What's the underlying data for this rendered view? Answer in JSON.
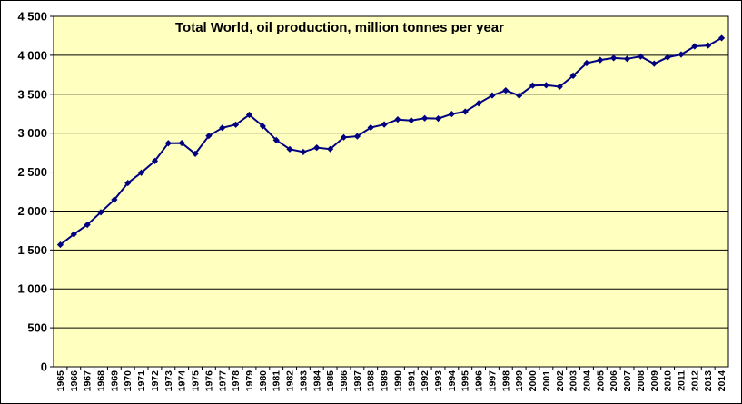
{
  "chart_data": {
    "type": "line",
    "title": "Total World, oil production, million tonnes per year",
    "xlabel": "",
    "ylabel": "",
    "ylim": [
      0,
      4500
    ],
    "yticks": [
      0,
      500,
      1000,
      1500,
      2000,
      2500,
      3000,
      3500,
      4000,
      4500
    ],
    "ytick_labels": [
      "0",
      "500",
      "1 000",
      "1 500",
      "2 000",
      "2 500",
      "3 000",
      "3 500",
      "4 000",
      "4 500"
    ],
    "grid": "horizontal",
    "legend": "none",
    "colors": {
      "plot_background": "#ffffc0",
      "line": "#000080",
      "grid": "#000000"
    },
    "categories": [
      "1965",
      "1966",
      "1967",
      "1968",
      "1969",
      "1970",
      "1971",
      "1972",
      "1973",
      "1974",
      "1975",
      "1976",
      "1977",
      "1978",
      "1979",
      "1980",
      "1981",
      "1982",
      "1983",
      "1984",
      "1985",
      "1986",
      "1987",
      "1988",
      "1989",
      "1990",
      "1991",
      "1992",
      "1993",
      "1994",
      "1995",
      "1996",
      "1997",
      "1998",
      "1999",
      "2000",
      "2001",
      "2002",
      "2003",
      "2004",
      "2005",
      "2006",
      "2007",
      "2008",
      "2009",
      "2010",
      "2011",
      "2012",
      "2013",
      "2014"
    ],
    "series": [
      {
        "values": [
          1567,
          1702,
          1824,
          1984,
          2145,
          2360,
          2492,
          2642,
          2871,
          2873,
          2735,
          2965,
          3068,
          3109,
          3235,
          3090,
          2910,
          2794,
          2758,
          2814,
          2796,
          2946,
          2960,
          3072,
          3111,
          3175,
          3163,
          3191,
          3187,
          3246,
          3276,
          3383,
          3485,
          3548,
          3483,
          3612,
          3616,
          3597,
          3738,
          3900,
          3939,
          3965,
          3954,
          3985,
          3892,
          3974,
          4010,
          4115,
          4126,
          4221
        ]
      }
    ]
  }
}
